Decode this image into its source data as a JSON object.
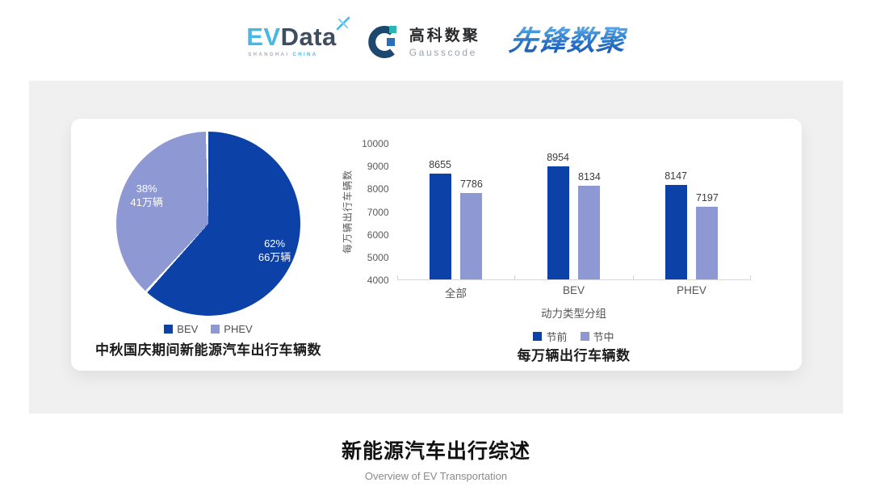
{
  "header": {
    "evdata": {
      "ev": "EV",
      "data": "Data",
      "sub_left": "SHANGHAI",
      "sub_right": "CHINA"
    },
    "gausscode": {
      "cn": "高科数聚",
      "en": "Gausscode"
    },
    "pioneer": {
      "text": "先锋数聚"
    }
  },
  "colors": {
    "series_dark": "#0c41a8",
    "series_light": "#8e98d3",
    "panel_bg": "#f0f0f1",
    "card_bg": "#ffffff"
  },
  "chart_data": [
    {
      "type": "pie",
      "title": "中秋国庆期间新能源汽车出行车辆数",
      "legend_position": "bottom",
      "start_angle_deg": 0,
      "slices": [
        {
          "label": "BEV",
          "pct": 62,
          "pct_label": "62%",
          "value_label": "66万辆",
          "color": "#0c41a8"
        },
        {
          "label": "PHEV",
          "pct": 38,
          "pct_label": "38%",
          "value_label": "41万辆",
          "color": "#8e98d3"
        }
      ]
    },
    {
      "type": "bar",
      "title": "每万辆出行车辆数",
      "xlabel": "动力类型分组",
      "ylabel": "每万辆出行车辆数",
      "categories": [
        "全部",
        "BEV",
        "PHEV"
      ],
      "series": [
        {
          "name": "节前",
          "color": "#0c41a8",
          "values": [
            8655,
            8954,
            8147
          ]
        },
        {
          "name": "节中",
          "color": "#8e98d3",
          "values": [
            7786,
            8134,
            7197
          ]
        }
      ],
      "ylim": [
        4000,
        10000
      ],
      "ytick_step": 1000,
      "grid": false,
      "legend_position": "bottom"
    }
  ],
  "footer": {
    "title": "新能源汽车出行综述",
    "subtitle": "Overview of EV Transportation"
  }
}
